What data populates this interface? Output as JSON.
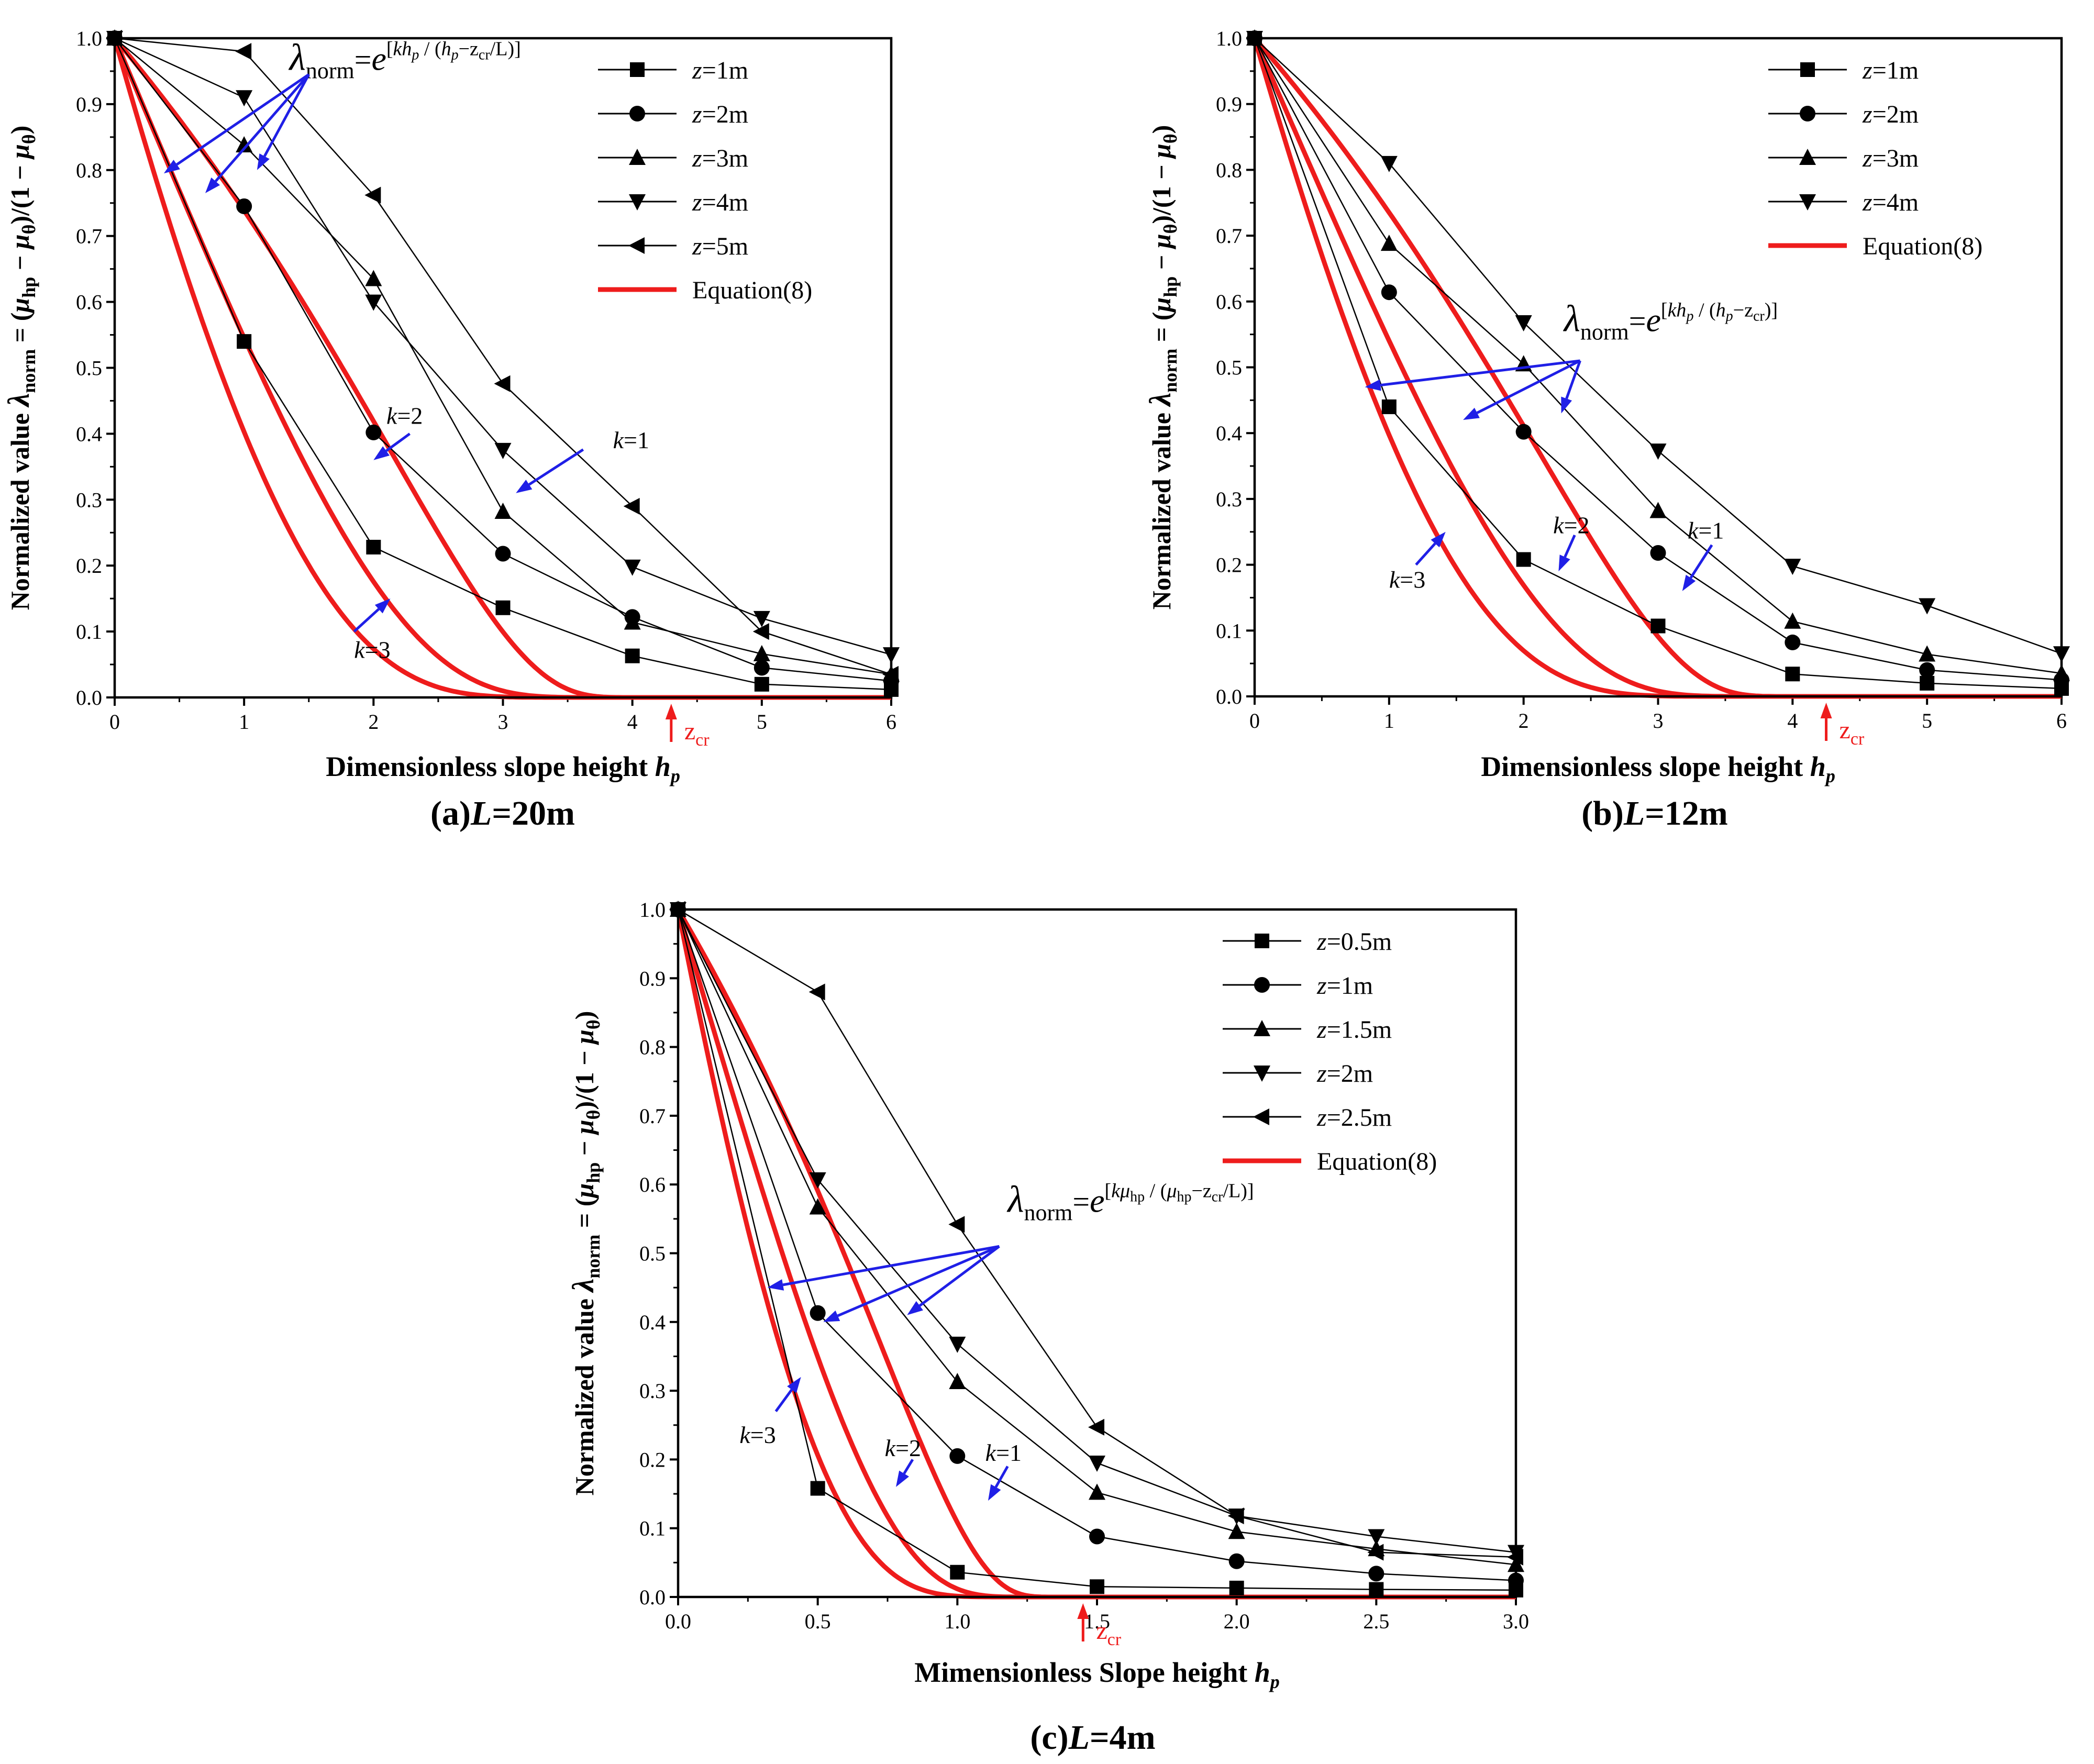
{
  "colors": {
    "data": "#000000",
    "equation": "#ee1c1c",
    "annotation": "#1f1fe6",
    "zcr": "#ee1c1c"
  },
  "chart_data": [
    {
      "type": "line",
      "panel_label": "(a)",
      "caption_var": "L",
      "caption_value": "=20m",
      "xlabel": "Dimensionless slope height ",
      "xlabel_var": "h",
      "xlabel_sub": "p",
      "ylabel": "Normalized value λnorm = (μhp − μθ)/(1 − μθ)",
      "xlim": [
        0,
        6
      ],
      "ylim": [
        0,
        1.0
      ],
      "xticks": [
        "0",
        "1",
        "2",
        "3",
        "4",
        "5",
        "6"
      ],
      "yticks": [
        "0.0",
        "0.1",
        "0.2",
        "0.3",
        "0.4",
        "0.5",
        "0.6",
        "0.7",
        "0.8",
        "0.9",
        "1.0"
      ],
      "series": [
        {
          "name": "z=1m",
          "z_value": "=1m",
          "marker": "square",
          "x": [
            0,
            1,
            2,
            3,
            4,
            5,
            6
          ],
          "y": [
            1.0,
            0.54,
            0.228,
            0.136,
            0.063,
            0.02,
            0.012
          ]
        },
        {
          "name": "z=2m",
          "z_value": "=2m",
          "marker": "circle",
          "x": [
            0,
            1,
            2,
            3,
            4,
            5,
            6
          ],
          "y": [
            1.0,
            0.745,
            0.402,
            0.218,
            0.122,
            0.045,
            0.025
          ]
        },
        {
          "name": "z=3m",
          "z_value": "=3m",
          "marker": "triangle-up",
          "x": [
            0,
            1,
            2,
            3,
            4,
            5,
            6
          ],
          "y": [
            1.0,
            0.838,
            0.635,
            0.282,
            0.114,
            0.066,
            0.035
          ]
        },
        {
          "name": "z=4m",
          "z_value": "=4m",
          "marker": "triangle-down",
          "x": [
            0,
            1,
            2,
            3,
            4,
            5,
            6
          ],
          "y": [
            1.0,
            0.91,
            0.6,
            0.375,
            0.198,
            0.12,
            0.065
          ]
        },
        {
          "name": "z=5m",
          "z_value": "=5m",
          "marker": "triangle-left",
          "x": [
            0,
            1,
            2,
            3,
            4,
            5,
            6
          ],
          "y": [
            1.0,
            0.98,
            0.762,
            0.476,
            0.29,
            0.1,
            0.035
          ]
        }
      ],
      "equation_legend": "Equation(8)",
      "equation": {
        "zcr": 4.3,
        "k": [
          1,
          2,
          3
        ]
      },
      "zcr_label": "cr",
      "formula": "λnorm=e[khp / (hp−zcr/L)]",
      "k_labels": [
        {
          "text": "k=1",
          "k": "k",
          "v": "=1",
          "at": [
            3.85,
            0.378
          ],
          "tail": [
            3.62,
            0.376
          ],
          "head": [
            3.1,
            0.31
          ]
        },
        {
          "text": "k=2",
          "k": "k",
          "v": "=2",
          "at": [
            2.1,
            0.415
          ],
          "tail": [
            2.28,
            0.4
          ],
          "head": [
            2.0,
            0.36
          ]
        },
        {
          "text": "k=3",
          "k": "k",
          "v": "=3",
          "at": [
            1.85,
            0.06
          ],
          "tail": [
            1.85,
            0.1
          ],
          "head": [
            2.13,
            0.15
          ]
        }
      ],
      "formula_pos": {
        "at": [
          1.35,
          0.952
        ],
        "fan": [
          1.5,
          0.945
        ],
        "heads": [
          [
            0.38,
            0.795
          ],
          [
            0.7,
            0.765
          ],
          [
            1.1,
            0.8
          ]
        ]
      },
      "legend_position": "top-right"
    },
    {
      "type": "line",
      "panel_label": "(b)",
      "caption_var": "L",
      "caption_value": "=12m",
      "xlabel": "Dimensionless slope height ",
      "xlabel_var": "h",
      "xlabel_sub": "p",
      "ylabel": "Normalized value λnorm = (μhp − μθ)/(1 − μθ)",
      "xlim": [
        0,
        6
      ],
      "ylim": [
        0,
        1.0
      ],
      "xticks": [
        "0",
        "1",
        "2",
        "3",
        "4",
        "5",
        "6"
      ],
      "yticks": [
        "0.0",
        "0.1",
        "0.2",
        "0.3",
        "0.4",
        "0.5",
        "0.6",
        "0.7",
        "0.8",
        "0.9",
        "1.0"
      ],
      "series": [
        {
          "name": "z=1m",
          "z_value": "=1m",
          "marker": "square",
          "x": [
            0,
            1,
            2,
            3,
            4,
            5,
            6
          ],
          "y": [
            1.0,
            0.44,
            0.208,
            0.107,
            0.034,
            0.02,
            0.012
          ]
        },
        {
          "name": "z=2m",
          "z_value": "=2m",
          "marker": "circle",
          "x": [
            0,
            1,
            2,
            3,
            4,
            5,
            6
          ],
          "y": [
            1.0,
            0.614,
            0.402,
            0.218,
            0.082,
            0.04,
            0.025
          ]
        },
        {
          "name": "z=3m",
          "z_value": "=3m",
          "marker": "triangle-up",
          "x": [
            0,
            1,
            2,
            3,
            4,
            5,
            6
          ],
          "y": [
            1.0,
            0.688,
            0.505,
            0.282,
            0.114,
            0.064,
            0.035
          ]
        },
        {
          "name": "z=4m",
          "z_value": "=4m",
          "marker": "triangle-down",
          "x": [
            0,
            1,
            2,
            3,
            4,
            5,
            6
          ],
          "y": [
            1.0,
            0.81,
            0.568,
            0.373,
            0.198,
            0.138,
            0.065
          ]
        }
      ],
      "equation_legend": "Equation(8)",
      "equation": {
        "zcr": 4.25,
        "k": [
          1,
          2,
          3
        ]
      },
      "zcr_label": "cr",
      "formula": "λnorm=e[khp / (hp−zcr)]",
      "k_labels": [
        {
          "text": "k=1",
          "k": "k",
          "v": "=1",
          "at": [
            3.22,
            0.24
          ],
          "tail": [
            3.4,
            0.23
          ],
          "head": [
            3.18,
            0.16
          ]
        },
        {
          "text": "k=2",
          "k": "k",
          "v": "=2",
          "at": [
            2.22,
            0.248
          ],
          "tail": [
            2.38,
            0.245
          ],
          "head": [
            2.26,
            0.19
          ]
        },
        {
          "text": "k=3",
          "k": "k",
          "v": "=3",
          "at": [
            1.0,
            0.165
          ],
          "tail": [
            1.2,
            0.2
          ],
          "head": [
            1.42,
            0.25
          ]
        }
      ],
      "formula_pos": {
        "at": [
          2.3,
          0.555
        ],
        "fan": [
          2.42,
          0.51
        ],
        "heads": [
          [
            0.82,
            0.47
          ],
          [
            1.55,
            0.42
          ],
          [
            2.28,
            0.43
          ]
        ]
      },
      "legend_position": "top-right"
    },
    {
      "type": "line",
      "panel_label": "(c)",
      "caption_var": "L",
      "caption_value": "=4m",
      "xlabel": "Mimensionless Slope height ",
      "xlabel_var": "h",
      "xlabel_sub": "p",
      "ylabel": "Normalized value λnorm = (μhp − μθ)/(1 − μθ)",
      "xlim": [
        0,
        3.0
      ],
      "ylim": [
        0,
        1.0
      ],
      "xticks": [
        "0.0",
        "0.5",
        "1.0",
        "1.5",
        "2.0",
        "2.5",
        "3.0"
      ],
      "yticks": [
        "0.0",
        "0.1",
        "0.2",
        "0.3",
        "0.4",
        "0.5",
        "0.6",
        "0.7",
        "0.8",
        "0.9",
        "1.0"
      ],
      "series": [
        {
          "name": "z=0.5m",
          "z_value": "=0.5m",
          "marker": "square",
          "x": [
            0,
            0.5,
            1.0,
            1.5,
            2.0,
            2.5,
            3.0
          ],
          "y": [
            1.0,
            0.158,
            0.036,
            0.015,
            0.013,
            0.011,
            0.01
          ]
        },
        {
          "name": "z=1m",
          "z_value": "=1m",
          "marker": "circle",
          "x": [
            0,
            0.5,
            1.0,
            1.5,
            2.0,
            2.5,
            3.0
          ],
          "y": [
            1.0,
            0.413,
            0.205,
            0.088,
            0.052,
            0.034,
            0.024
          ]
        },
        {
          "name": "z=1.5m",
          "z_value": "=1.5m",
          "marker": "triangle-up",
          "x": [
            0,
            0.5,
            1.0,
            1.5,
            2.0,
            2.5,
            3.0
          ],
          "y": [
            1.0,
            0.567,
            0.313,
            0.152,
            0.095,
            0.07,
            0.047
          ]
        },
        {
          "name": "z=2m",
          "z_value": "=2m",
          "marker": "triangle-down",
          "x": [
            0,
            0.5,
            1.0,
            1.5,
            2.0,
            2.5,
            3.0
          ],
          "y": [
            1.0,
            0.607,
            0.368,
            0.195,
            0.118,
            0.088,
            0.065
          ]
        },
        {
          "name": "z=2.5m",
          "z_value": "=2.5m",
          "marker": "triangle-left",
          "x": [
            0,
            0.5,
            1.0,
            1.5,
            2.0,
            2.5,
            3.0
          ],
          "y": [
            1.0,
            0.88,
            0.542,
            0.247,
            0.118,
            0.065,
            0.058
          ]
        }
      ],
      "equation_legend": "Equation(8)",
      "equation": {
        "zcr": 1.45,
        "k": [
          1,
          2,
          3
        ]
      },
      "zcr_label": "cr",
      "formula": "λnorm=e[kμhp / (μhp−zcr/L)]",
      "k_labels": [
        {
          "text": "k=1",
          "k": "k",
          "v": "=1",
          "at": [
            1.1,
            0.198
          ],
          "tail": [
            1.18,
            0.19
          ],
          "head": [
            1.11,
            0.14
          ]
        },
        {
          "text": "k=2",
          "k": "k",
          "v": "=2",
          "at": [
            0.74,
            0.205
          ],
          "tail": [
            0.84,
            0.2
          ],
          "head": [
            0.78,
            0.16
          ]
        },
        {
          "text": "k=3",
          "k": "k",
          "v": "=3",
          "at": [
            0.22,
            0.224
          ],
          "tail": [
            0.35,
            0.27
          ],
          "head": [
            0.44,
            0.32
          ]
        }
      ],
      "formula_pos": {
        "at": [
          1.18,
          0.56
        ],
        "fan": [
          1.15,
          0.51
        ],
        "heads": [
          [
            0.32,
            0.45
          ],
          [
            0.52,
            0.4
          ],
          [
            0.82,
            0.41
          ]
        ]
      },
      "legend_position": "top-right"
    }
  ]
}
